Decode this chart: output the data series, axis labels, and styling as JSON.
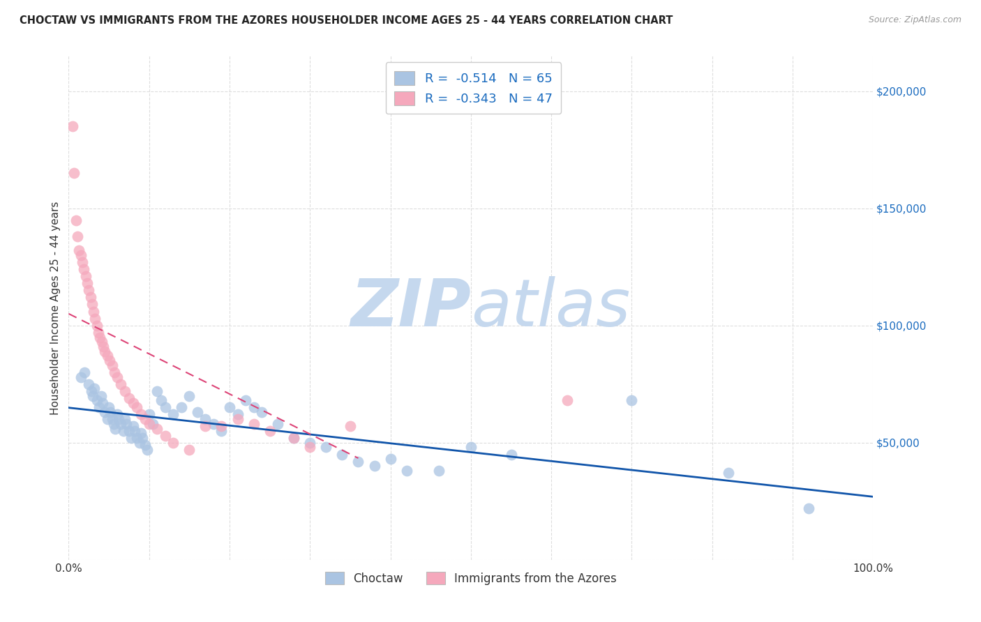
{
  "title": "CHOCTAW VS IMMIGRANTS FROM THE AZORES HOUSEHOLDER INCOME AGES 25 - 44 YEARS CORRELATION CHART",
  "source": "Source: ZipAtlas.com",
  "ylabel": "Householder Income Ages 25 - 44 years",
  "xlim": [
    0,
    1.0
  ],
  "ylim": [
    0,
    215000
  ],
  "xticks": [
    0.0,
    0.1,
    0.2,
    0.3,
    0.4,
    0.5,
    0.6,
    0.7,
    0.8,
    0.9,
    1.0
  ],
  "xticklabels": [
    "0.0%",
    "",
    "",
    "",
    "",
    "",
    "",
    "",
    "",
    "",
    "100.0%"
  ],
  "yticks": [
    0,
    50000,
    100000,
    150000,
    200000
  ],
  "yticklabels": [
    "",
    "$50,000",
    "$100,000",
    "$150,000",
    "$200,000"
  ],
  "choctaw_color": "#aac4e2",
  "azores_color": "#f5a8bc",
  "choctaw_line_color": "#1155aa",
  "azores_line_color": "#dd4477",
  "choctaw_R": -0.514,
  "choctaw_N": 65,
  "azores_R": -0.343,
  "azores_N": 47,
  "legend_label_choctaw": "Choctaw",
  "legend_label_azores": "Immigrants from the Azores",
  "watermark_zip": "ZIP",
  "watermark_atlas": "atlas",
  "background_color": "#ffffff",
  "grid_color": "#dddddd",
  "choctaw_x": [
    0.015,
    0.02,
    0.025,
    0.028,
    0.03,
    0.032,
    0.035,
    0.038,
    0.04,
    0.042,
    0.045,
    0.048,
    0.05,
    0.052,
    0.054,
    0.056,
    0.058,
    0.06,
    0.062,
    0.065,
    0.068,
    0.07,
    0.072,
    0.075,
    0.078,
    0.08,
    0.082,
    0.085,
    0.088,
    0.09,
    0.092,
    0.095,
    0.098,
    0.1,
    0.105,
    0.11,
    0.115,
    0.12,
    0.13,
    0.14,
    0.15,
    0.16,
    0.17,
    0.18,
    0.19,
    0.2,
    0.21,
    0.22,
    0.23,
    0.24,
    0.26,
    0.28,
    0.3,
    0.32,
    0.34,
    0.36,
    0.38,
    0.4,
    0.42,
    0.46,
    0.5,
    0.55,
    0.7,
    0.82,
    0.92
  ],
  "choctaw_y": [
    78000,
    80000,
    75000,
    72000,
    70000,
    73000,
    68000,
    65000,
    70000,
    67000,
    63000,
    60000,
    65000,
    63000,
    60000,
    58000,
    56000,
    62000,
    60000,
    58000,
    55000,
    60000,
    58000,
    55000,
    52000,
    57000,
    55000,
    52000,
    50000,
    54000,
    52000,
    49000,
    47000,
    62000,
    58000,
    72000,
    68000,
    65000,
    62000,
    65000,
    70000,
    63000,
    60000,
    58000,
    55000,
    65000,
    62000,
    68000,
    65000,
    63000,
    58000,
    52000,
    50000,
    48000,
    45000,
    42000,
    40000,
    43000,
    38000,
    38000,
    48000,
    45000,
    68000,
    37000,
    22000
  ],
  "azores_x": [
    0.005,
    0.007,
    0.009,
    0.011,
    0.013,
    0.015,
    0.017,
    0.019,
    0.021,
    0.023,
    0.025,
    0.027,
    0.029,
    0.031,
    0.033,
    0.035,
    0.037,
    0.039,
    0.041,
    0.043,
    0.045,
    0.048,
    0.051,
    0.054,
    0.057,
    0.06,
    0.065,
    0.07,
    0.075,
    0.08,
    0.085,
    0.09,
    0.095,
    0.1,
    0.11,
    0.12,
    0.13,
    0.15,
    0.17,
    0.19,
    0.21,
    0.23,
    0.25,
    0.28,
    0.3,
    0.35,
    0.62
  ],
  "azores_y": [
    185000,
    165000,
    145000,
    138000,
    132000,
    130000,
    127000,
    124000,
    121000,
    118000,
    115000,
    112000,
    109000,
    106000,
    103000,
    100000,
    97000,
    95000,
    93000,
    91000,
    89000,
    87000,
    85000,
    83000,
    80000,
    78000,
    75000,
    72000,
    69000,
    67000,
    65000,
    62000,
    60000,
    58000,
    56000,
    53000,
    50000,
    47000,
    57000,
    57000,
    60000,
    58000,
    55000,
    52000,
    48000,
    57000,
    68000
  ]
}
